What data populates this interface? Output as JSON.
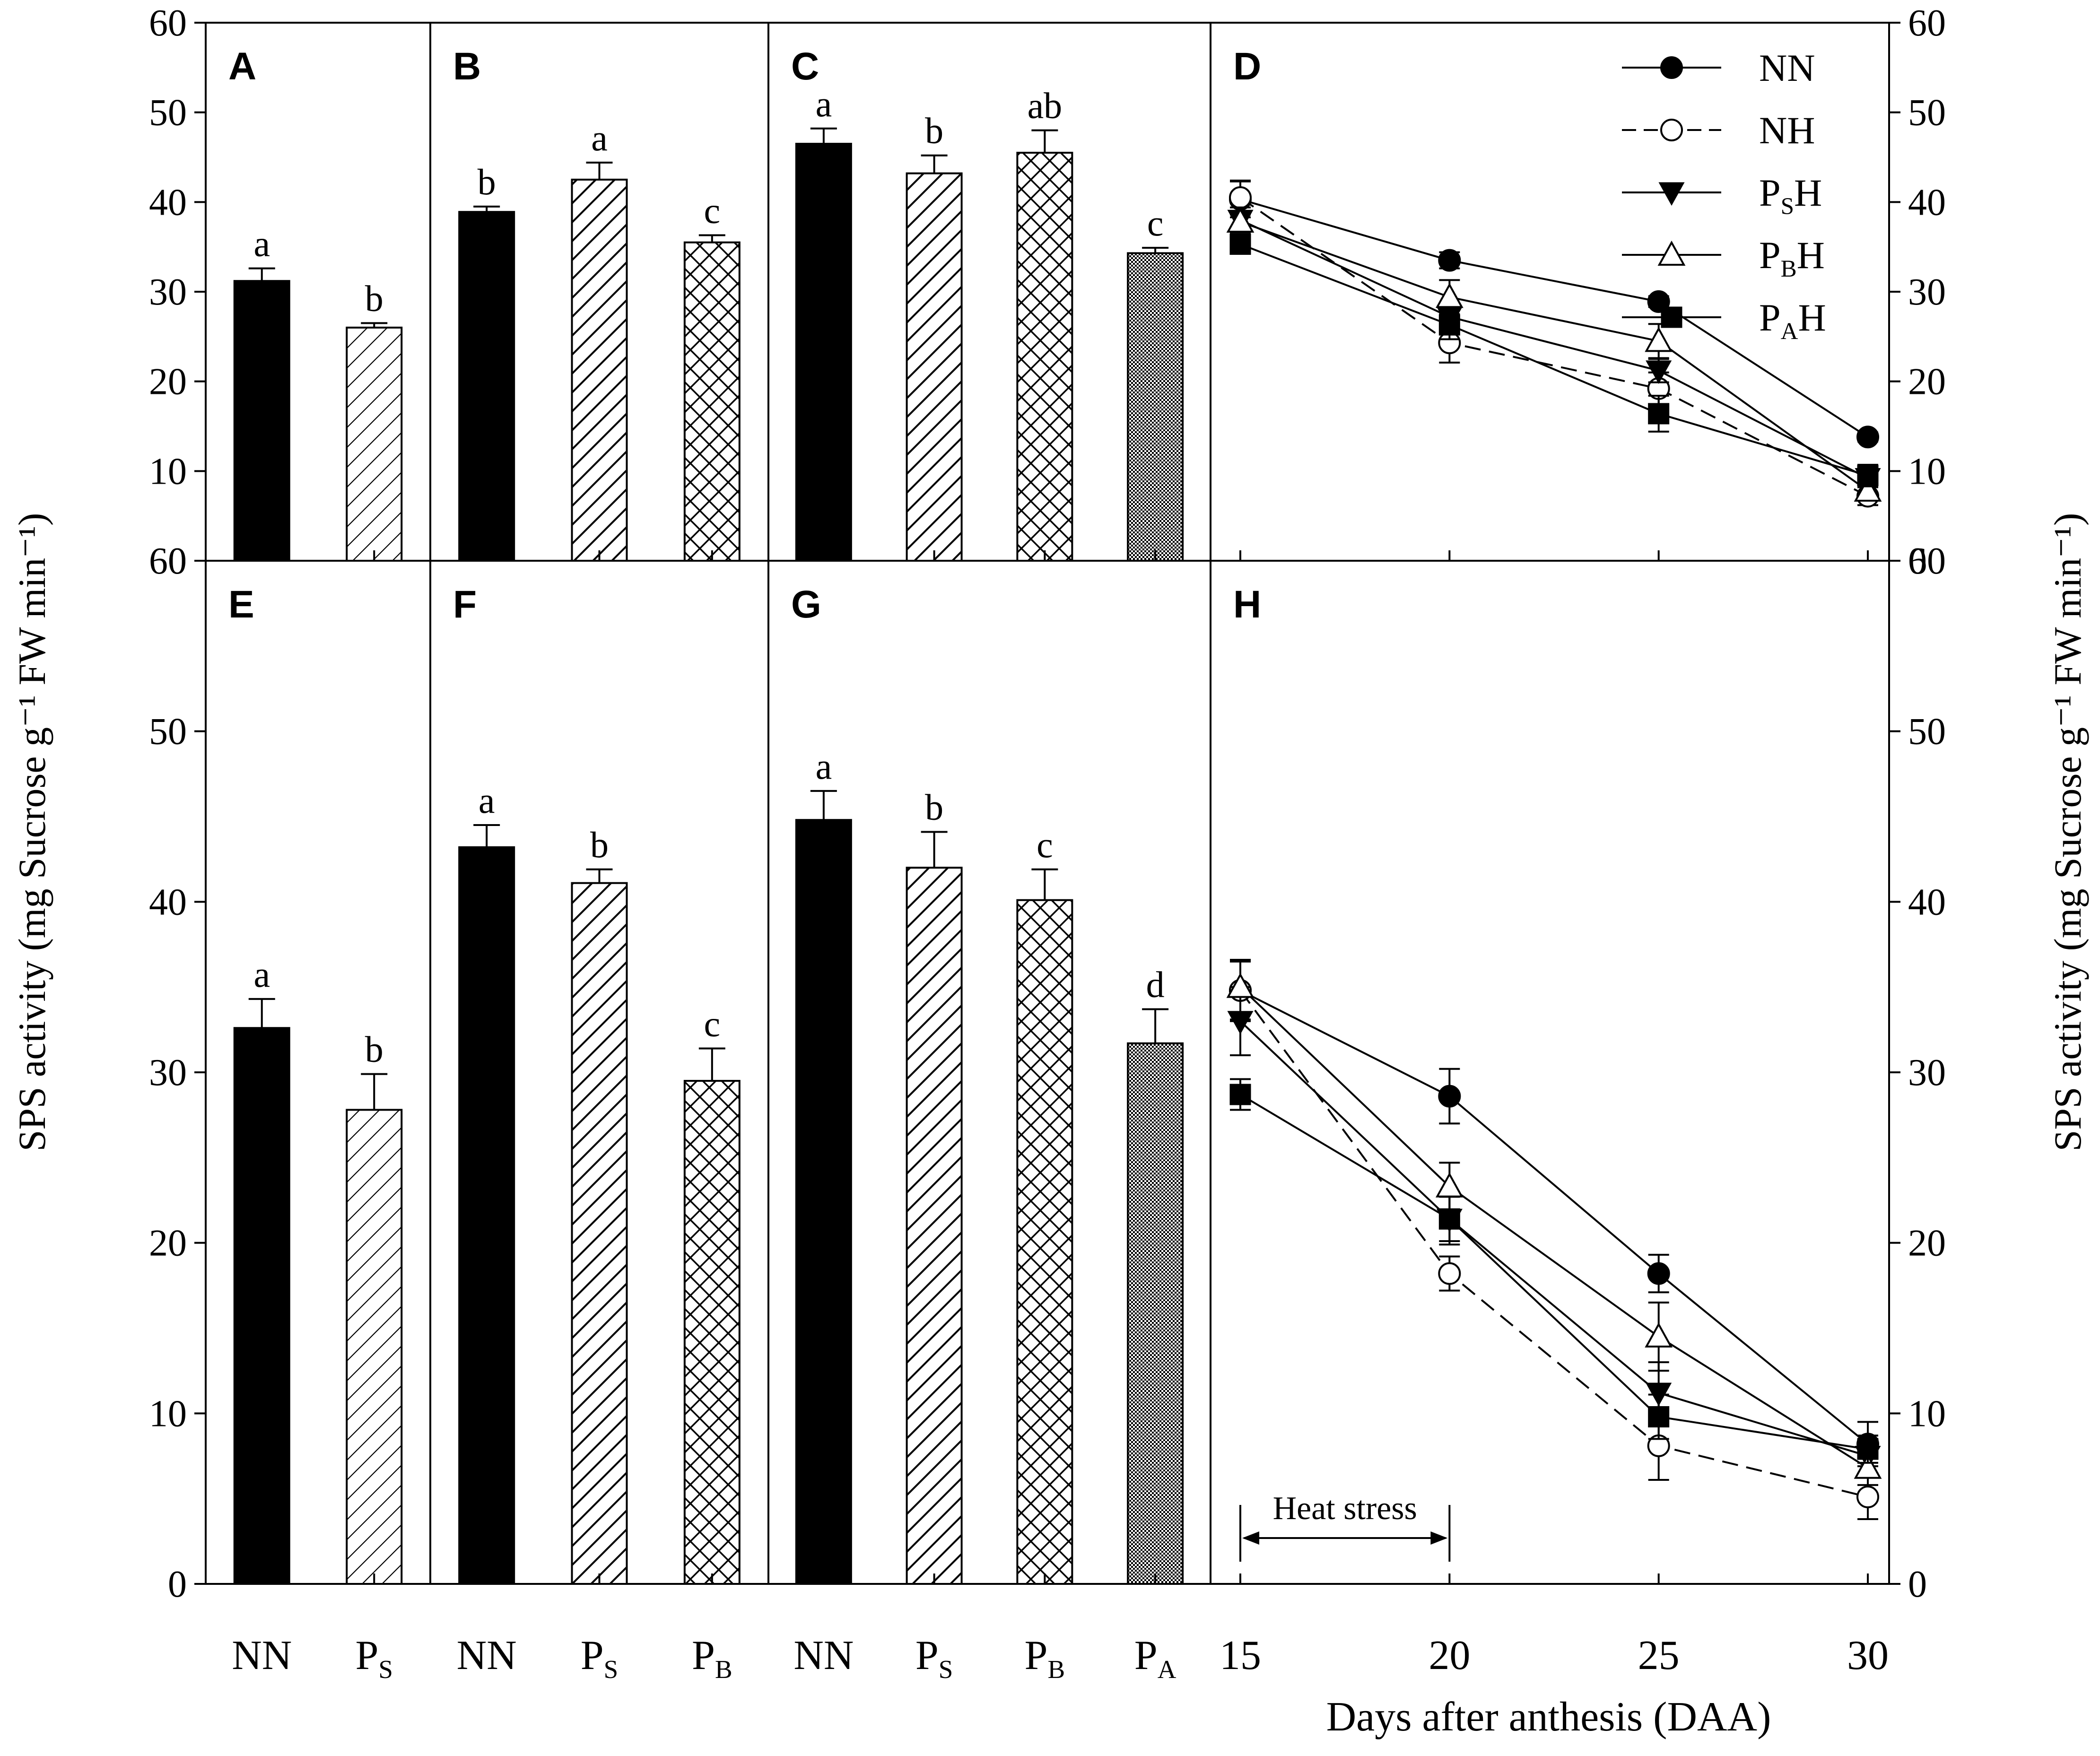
{
  "chart_data": {
    "type": "bar",
    "title": "",
    "y_axis_label": "SPS activity (mg Sucrose g⁻¹ FW min⁻¹)",
    "right_axis_label": "SPS activity (mg Sucrose g⁻¹ FW min⁻¹)",
    "x_axis_label_line": "Days after anthesis (DAA)",
    "ylim": [
      0,
      60
    ],
    "yticks": [
      0,
      10,
      20,
      30,
      40,
      50,
      60
    ],
    "panels": [
      {
        "id": "A",
        "type": "bar",
        "row": "top",
        "categories": [
          {
            "main": "NN",
            "sub": ""
          },
          {
            "main": "P",
            "sub": "S"
          }
        ],
        "values": [
          31.2,
          26.0
        ],
        "errors": [
          1.4,
          0.5
        ],
        "letters": [
          "a",
          "b"
        ],
        "patterns": [
          "solid",
          "diag-light"
        ]
      },
      {
        "id": "B",
        "type": "bar",
        "row": "top",
        "categories": [
          {
            "main": "NN",
            "sub": ""
          },
          {
            "main": "P",
            "sub": "S"
          },
          {
            "main": "P",
            "sub": "B"
          }
        ],
        "values": [
          38.9,
          42.5,
          35.5
        ],
        "errors": [
          0.6,
          1.9,
          0.8
        ],
        "letters": [
          "b",
          "a",
          "c"
        ],
        "patterns": [
          "solid",
          "diag",
          "cross"
        ]
      },
      {
        "id": "C",
        "type": "bar",
        "row": "top",
        "categories": [
          {
            "main": "NN",
            "sub": ""
          },
          {
            "main": "P",
            "sub": "S"
          },
          {
            "main": "P",
            "sub": "B"
          },
          {
            "main": "P",
            "sub": "A"
          }
        ],
        "values": [
          46.5,
          43.2,
          45.5,
          34.3
        ],
        "errors": [
          1.7,
          2.0,
          2.5,
          0.6
        ],
        "letters": [
          "a",
          "b",
          "ab",
          "c"
        ],
        "patterns": [
          "solid",
          "diag",
          "cross",
          "dots"
        ]
      },
      {
        "id": "D",
        "type": "line",
        "row": "top",
        "x": [
          15,
          20,
          25,
          30
        ],
        "xlim": [
          15,
          30
        ],
        "series": [
          {
            "name": "NN",
            "sub": "",
            "values": [
              40.3,
              33.5,
              28.9,
              13.8
            ],
            "errors": [
              2.0,
              0.9,
              0.6,
              0.5
            ],
            "marker": "circle-filled",
            "dash": false
          },
          {
            "name": "NH",
            "sub": "",
            "values": [
              40.5,
              24.3,
              19.2,
              7.2
            ],
            "errors": [
              1.9,
              2.2,
              1.8,
              1.0
            ],
            "marker": "circle-open",
            "dash": true
          },
          {
            "name": "P",
            "sub": "S",
            "suffix": "H",
            "values": [
              38.0,
              27.2,
              21.2,
              9.2
            ],
            "errors": [
              1.4,
              1.4,
              1.3,
              0.9
            ],
            "marker": "triangle-down-filled",
            "dash": false
          },
          {
            "name": "P",
            "sub": "B",
            "suffix": "H",
            "values": [
              37.8,
              29.4,
              24.5,
              7.8
            ],
            "errors": [
              1.2,
              1.9,
              1.9,
              1.0
            ],
            "marker": "triangle-up-open",
            "dash": false
          },
          {
            "name": "P",
            "sub": "A",
            "suffix": "H",
            "values": [
              35.3,
              26.3,
              16.4,
              9.5
            ],
            "errors": [
              0.8,
              1.6,
              2.0,
              1.2
            ],
            "marker": "square-filled",
            "dash": false
          }
        ]
      },
      {
        "id": "E",
        "type": "bar",
        "row": "bottom",
        "categories": [
          {
            "main": "NN",
            "sub": ""
          },
          {
            "main": "P",
            "sub": "S"
          }
        ],
        "values": [
          32.6,
          27.8
        ],
        "errors": [
          1.7,
          2.1
        ],
        "letters": [
          "a",
          "b"
        ],
        "patterns": [
          "solid",
          "diag-light"
        ]
      },
      {
        "id": "F",
        "type": "bar",
        "row": "bottom",
        "categories": [
          {
            "main": "NN",
            "sub": ""
          },
          {
            "main": "P",
            "sub": "S"
          },
          {
            "main": "P",
            "sub": "B"
          }
        ],
        "values": [
          43.2,
          41.1,
          29.5
        ],
        "errors": [
          1.3,
          0.8,
          1.9
        ],
        "letters": [
          "a",
          "b",
          "c"
        ],
        "patterns": [
          "solid",
          "diag",
          "cross"
        ]
      },
      {
        "id": "G",
        "type": "bar",
        "row": "bottom",
        "categories": [
          {
            "main": "NN",
            "sub": ""
          },
          {
            "main": "P",
            "sub": "S"
          },
          {
            "main": "P",
            "sub": "B"
          },
          {
            "main": "P",
            "sub": "A"
          }
        ],
        "values": [
          44.8,
          42.0,
          40.1,
          31.7
        ],
        "errors": [
          1.7,
          2.1,
          1.8,
          2.0
        ],
        "letters": [
          "a",
          "b",
          "c",
          "d"
        ],
        "patterns": [
          "solid",
          "diag",
          "cross",
          "dots"
        ]
      },
      {
        "id": "H",
        "type": "line",
        "row": "bottom",
        "x": [
          15,
          20,
          25,
          30
        ],
        "xlim": [
          15,
          30
        ],
        "annotation": "Heat stress",
        "annotation_range": [
          15,
          20
        ],
        "series": [
          {
            "name": "NN",
            "sub": "",
            "values": [
              34.8,
              28.6,
              18.2,
              8.2
            ],
            "errors": [
              1.8,
              1.6,
              1.1,
              1.3
            ],
            "marker": "circle-filled",
            "dash": false
          },
          {
            "name": "NH",
            "sub": "",
            "values": [
              34.8,
              18.2,
              8.1,
              5.1
            ],
            "errors": [
              1.7,
              1.0,
              2.0,
              1.3
            ],
            "marker": "circle-open",
            "dash": true
          },
          {
            "name": "P",
            "sub": "S",
            "suffix": "H",
            "values": [
              33.0,
              21.4,
              11.2,
              7.5
            ],
            "errors": [
              2.0,
              1.5,
              1.8,
              1.0
            ],
            "marker": "triangle-down-filled",
            "dash": false
          },
          {
            "name": "P",
            "sub": "B",
            "suffix": "H",
            "values": [
              35.0,
              23.3,
              14.5,
              6.8
            ],
            "errors": [
              1.5,
              1.4,
              2.0,
              1.0
            ],
            "marker": "triangle-up-open",
            "dash": false
          },
          {
            "name": "P",
            "sub": "A",
            "suffix": "H",
            "values": [
              28.7,
              21.4,
              9.8,
              7.9
            ],
            "errors": [
              0.9,
              1.3,
              1.3,
              0.8
            ],
            "marker": "square-filled",
            "dash": false
          }
        ]
      }
    ]
  }
}
